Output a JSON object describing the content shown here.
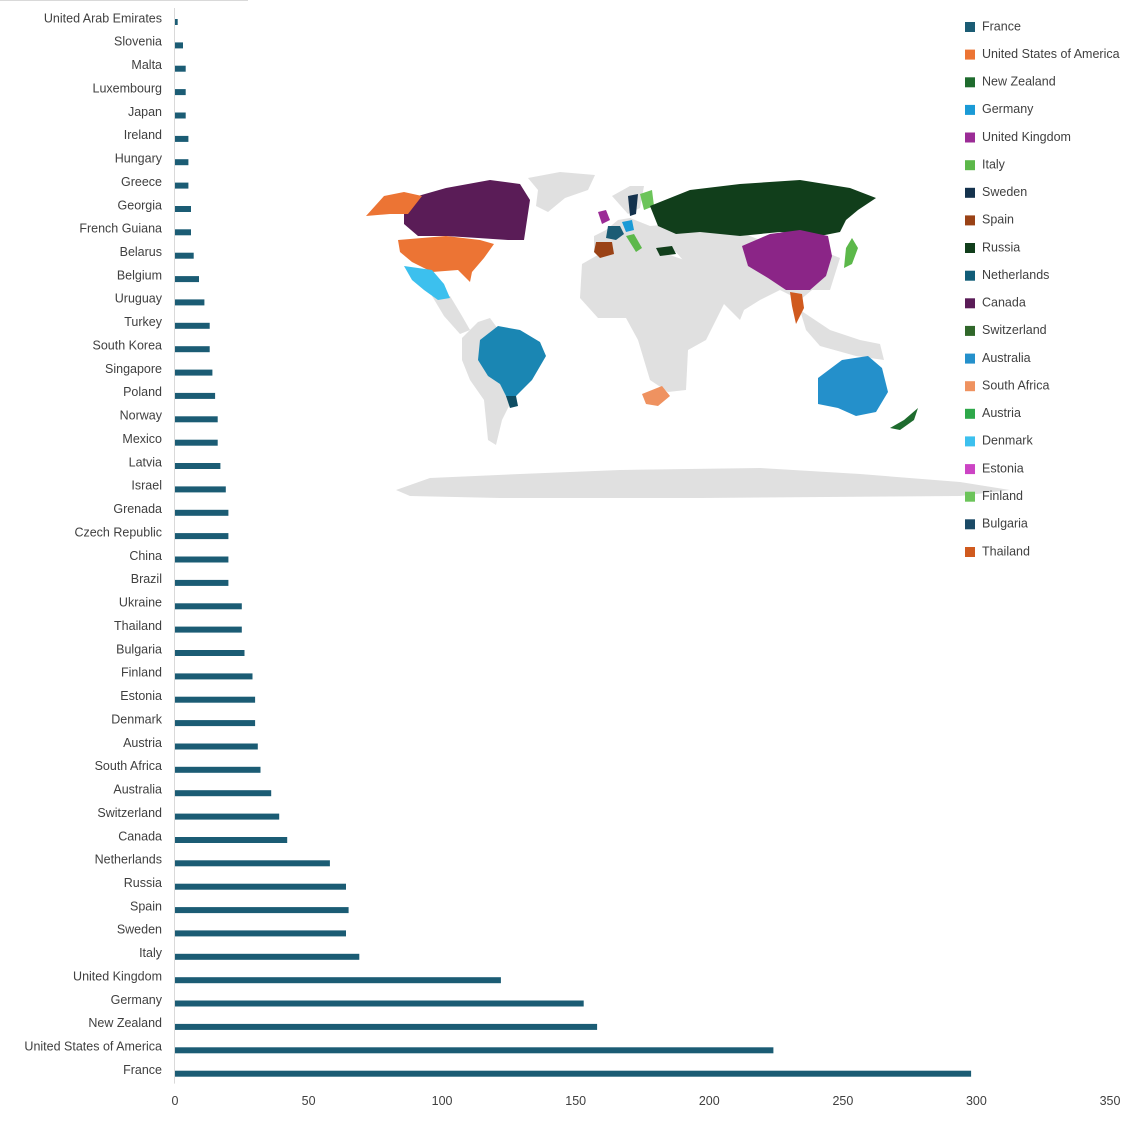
{
  "chart_data": [
    {
      "type": "bar",
      "orientation": "horizontal",
      "categories": [
        "United Arab Emirates",
        "Slovenia",
        "Malta",
        "Luxembourg",
        "Japan",
        "Ireland",
        "Hungary",
        "Greece",
        "Georgia",
        "French Guiana",
        "Belarus",
        "Belgium",
        "Uruguay",
        "Turkey",
        "South Korea",
        "Singapore",
        "Poland",
        "Norway",
        "Mexico",
        "Latvia",
        "Israel",
        "Grenada",
        "Czech Republic",
        "China",
        "Brazil",
        "Ukraine",
        "Thailand",
        "Bulgaria",
        "Finland",
        "Estonia",
        "Denmark",
        "Austria",
        "South Africa",
        "Australia",
        "Switzerland",
        "Canada",
        "Netherlands",
        "Russia",
        "Spain",
        "Sweden",
        "Italy",
        "United Kingdom",
        "Germany",
        "New Zealand",
        "United States of America",
        "France"
      ],
      "values": [
        1,
        3,
        4,
        4,
        4,
        5,
        5,
        5,
        6,
        6,
        7,
        9,
        11,
        13,
        13,
        14,
        15,
        16,
        16,
        17,
        19,
        20,
        20,
        20,
        20,
        25,
        25,
        26,
        29,
        30,
        30,
        31,
        32,
        36,
        39,
        42,
        58,
        64,
        65,
        64,
        69,
        122,
        153,
        158,
        224,
        298
      ],
      "xlim": [
        0,
        350
      ],
      "xticks": [
        0,
        50,
        100,
        150,
        200,
        250,
        300,
        350
      ],
      "bar_color": "#1b5c74",
      "grid": false
    },
    {
      "type": "map",
      "legend_position": "right",
      "legend": [
        {
          "name": "France",
          "color": "#1b5c74"
        },
        {
          "name": "United States of America",
          "color": "#ec7434"
        },
        {
          "name": "New Zealand",
          "color": "#1e6b2e"
        },
        {
          "name": "Germany",
          "color": "#1a9ad6"
        },
        {
          "name": "United Kingdom",
          "color": "#9b2c96"
        },
        {
          "name": "Italy",
          "color": "#5cb84a"
        },
        {
          "name": "Sweden",
          "color": "#14324d"
        },
        {
          "name": "Spain",
          "color": "#9a4216"
        },
        {
          "name": "Russia",
          "color": "#113e1b"
        },
        {
          "name": "Netherlands",
          "color": "#115d78"
        },
        {
          "name": "Canada",
          "color": "#5a1c57"
        },
        {
          "name": "Switzerland",
          "color": "#30672a"
        },
        {
          "name": "Australia",
          "color": "#2490cb"
        },
        {
          "name": "South Africa",
          "color": "#ef9260"
        },
        {
          "name": "Austria",
          "color": "#2ea84a"
        },
        {
          "name": "Denmark",
          "color": "#3cc0ee"
        },
        {
          "name": "Estonia",
          "color": "#cc44c4"
        },
        {
          "name": "Finland",
          "color": "#6cc45a"
        },
        {
          "name": "Bulgaria",
          "color": "#1b4a66"
        },
        {
          "name": "Thailand",
          "color": "#d05a1e"
        }
      ],
      "base_land_color": "#e0e0e0"
    }
  ]
}
